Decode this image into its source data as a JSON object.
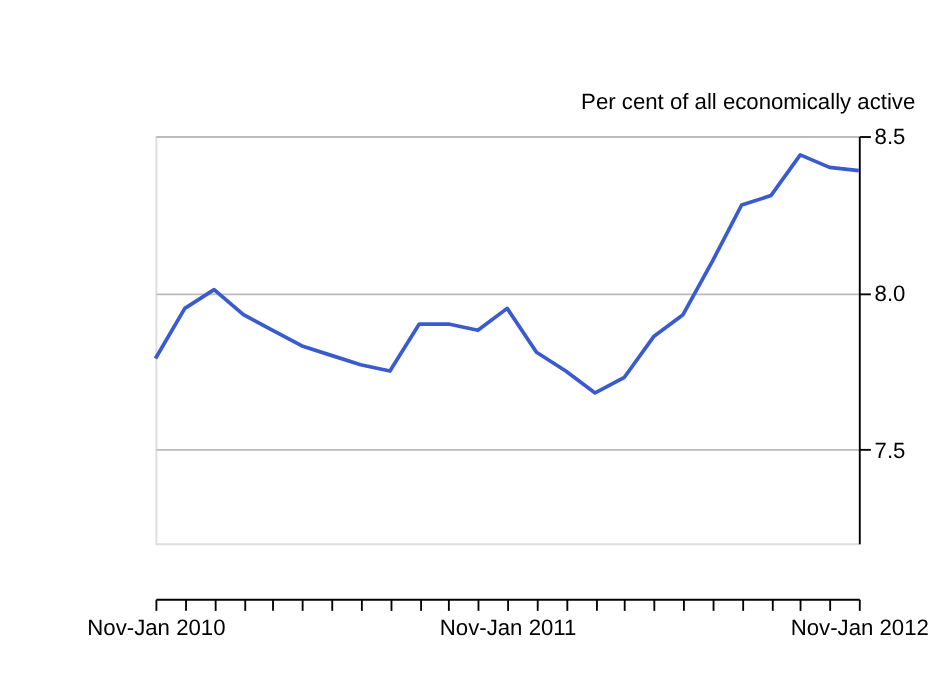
{
  "chart_data": {
    "type": "line",
    "ylabel": "Per cent of all economically active",
    "categories": [
      "Nov-Jan 2010",
      null,
      null,
      null,
      null,
      null,
      null,
      null,
      null,
      null,
      null,
      null,
      "Nov-Jan 2011",
      null,
      null,
      null,
      null,
      null,
      null,
      null,
      null,
      null,
      null,
      null,
      "Nov-Jan 2012"
    ],
    "series": [
      {
        "color": "#3a5bd0",
        "values": [
          7.79,
          7.95,
          8.01,
          7.93,
          7.88,
          7.83,
          7.8,
          7.77,
          7.75,
          7.9,
          7.9,
          7.88,
          7.95,
          7.81,
          7.75,
          7.68,
          7.73,
          7.86,
          7.93,
          8.1,
          8.28,
          8.31,
          8.44,
          8.4,
          8.39
        ]
      }
    ],
    "ylim": [
      7.2,
      8.5
    ],
    "yticks": [
      7.5,
      {
        "value": 8,
        "label": "8.0"
      },
      8.5
    ],
    "grid": "y",
    "marker": "none",
    "line_style": "solid"
  }
}
